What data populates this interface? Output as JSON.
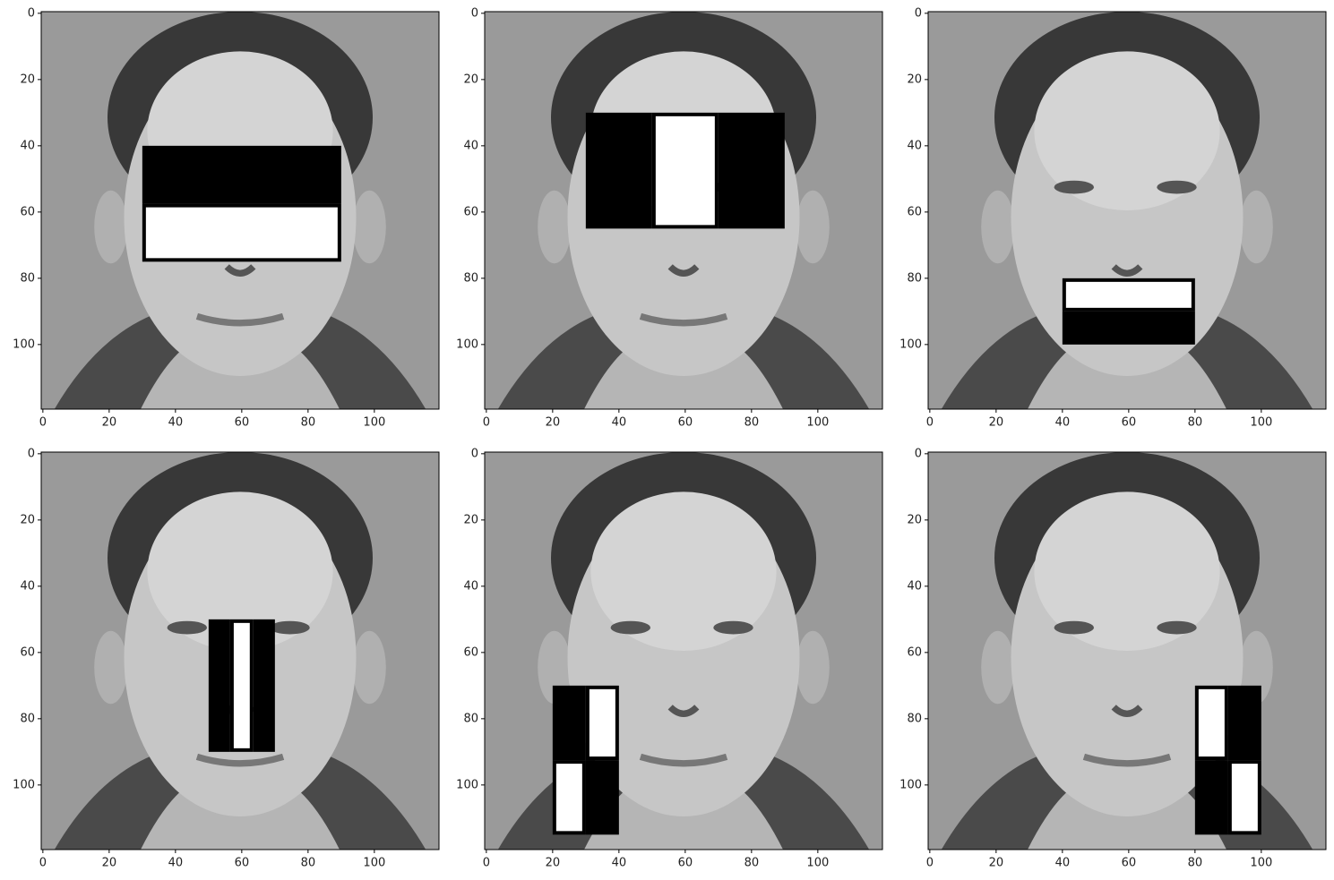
{
  "chart_data": [
    {
      "type": "image",
      "xlim": [
        -0.5,
        119.5
      ],
      "ylim": [
        119.5,
        -0.5
      ],
      "xticks": [
        0,
        20,
        40,
        60,
        80,
        100
      ],
      "yticks": [
        0,
        20,
        40,
        60,
        80,
        100
      ],
      "regions": [
        {
          "x": [
            30,
            90
          ],
          "y": [
            40,
            57.5
          ],
          "color": "black"
        },
        {
          "x": [
            30,
            90
          ],
          "y": [
            57.5,
            75
          ],
          "color": "white"
        }
      ]
    },
    {
      "type": "image",
      "xlim": [
        -0.5,
        119.5
      ],
      "ylim": [
        119.5,
        -0.5
      ],
      "xticks": [
        0,
        20,
        40,
        60,
        80,
        100
      ],
      "yticks": [
        0,
        20,
        40,
        60,
        80,
        100
      ],
      "regions": [
        {
          "x": [
            30,
            50
          ],
          "y": [
            30,
            65
          ],
          "color": "black"
        },
        {
          "x": [
            50,
            70
          ],
          "y": [
            30,
            65
          ],
          "color": "white"
        },
        {
          "x": [
            70,
            90
          ],
          "y": [
            30,
            65
          ],
          "color": "black"
        }
      ]
    },
    {
      "type": "image",
      "xlim": [
        -0.5,
        119.5
      ],
      "ylim": [
        119.5,
        -0.5
      ],
      "xticks": [
        0,
        20,
        40,
        60,
        80,
        100
      ],
      "yticks": [
        0,
        20,
        40,
        60,
        80,
        100
      ],
      "regions": [
        {
          "x": [
            40,
            80
          ],
          "y": [
            80,
            90
          ],
          "color": "white"
        },
        {
          "x": [
            40,
            80
          ],
          "y": [
            90,
            100
          ],
          "color": "black"
        }
      ]
    },
    {
      "type": "image",
      "xlim": [
        -0.5,
        119.5
      ],
      "ylim": [
        119.5,
        -0.5
      ],
      "xticks": [
        0,
        20,
        40,
        60,
        80,
        100
      ],
      "yticks": [
        0,
        20,
        40,
        60,
        80,
        100
      ],
      "regions": [
        {
          "x": [
            50,
            56.5
          ],
          "y": [
            50,
            90
          ],
          "color": "black"
        },
        {
          "x": [
            56.5,
            63.5
          ],
          "y": [
            50,
            90
          ],
          "color": "white"
        },
        {
          "x": [
            63.5,
            70
          ],
          "y": [
            50,
            90
          ],
          "color": "black"
        }
      ]
    },
    {
      "type": "image",
      "xlim": [
        -0.5,
        119.5
      ],
      "ylim": [
        119.5,
        -0.5
      ],
      "xticks": [
        0,
        20,
        40,
        60,
        80,
        100
      ],
      "yticks": [
        0,
        20,
        40,
        60,
        80,
        100
      ],
      "regions": [
        {
          "x": [
            20,
            30
          ],
          "y": [
            70,
            92.5
          ],
          "color": "black"
        },
        {
          "x": [
            30,
            40
          ],
          "y": [
            70,
            92.5
          ],
          "color": "white"
        },
        {
          "x": [
            20,
            30
          ],
          "y": [
            92.5,
            115
          ],
          "color": "white"
        },
        {
          "x": [
            30,
            40
          ],
          "y": [
            92.5,
            115
          ],
          "color": "black"
        }
      ]
    },
    {
      "type": "image",
      "xlim": [
        -0.5,
        119.5
      ],
      "ylim": [
        119.5,
        -0.5
      ],
      "xticks": [
        0,
        20,
        40,
        60,
        80,
        100
      ],
      "yticks": [
        0,
        20,
        40,
        60,
        80,
        100
      ],
      "regions": [
        {
          "x": [
            80,
            90
          ],
          "y": [
            70,
            92.5
          ],
          "color": "white"
        },
        {
          "x": [
            90,
            100
          ],
          "y": [
            70,
            92.5
          ],
          "color": "black"
        },
        {
          "x": [
            80,
            90
          ],
          "y": [
            92.5,
            115
          ],
          "color": "black"
        },
        {
          "x": [
            90,
            100
          ],
          "y": [
            92.5,
            115
          ],
          "color": "white"
        }
      ]
    }
  ]
}
